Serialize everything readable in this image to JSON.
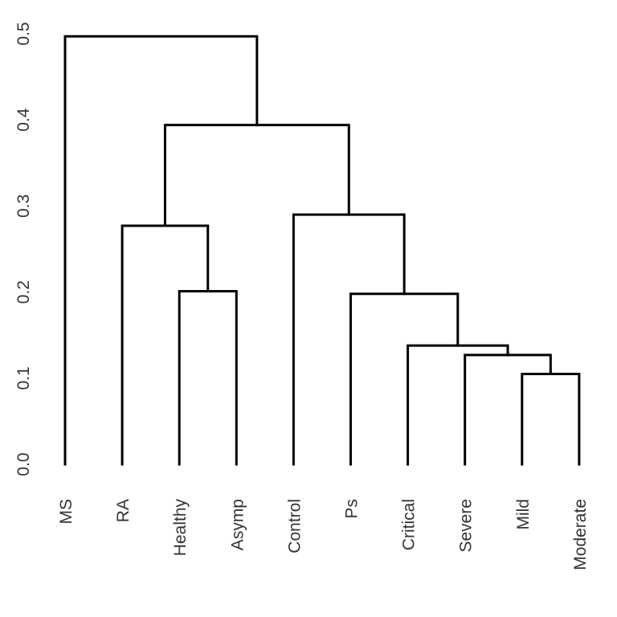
{
  "chart_data": {
    "type": "dendrogram",
    "title": "",
    "xlabel": "",
    "ylabel": "",
    "ylim": [
      0,
      0.5
    ],
    "y_ticks": [
      "0.0",
      "0.1",
      "0.2",
      "0.3",
      "0.4",
      "0.5"
    ],
    "leaves": [
      "MS",
      "RA",
      "Healthy",
      "Asymp",
      "Control",
      "Ps",
      "Critical",
      "Severe",
      "Mild",
      "Moderate"
    ],
    "merges": [
      {
        "id": "n1",
        "left": "Mild",
        "right": "Moderate",
        "height": 0.105
      },
      {
        "id": "n2",
        "left": "Severe",
        "right": "n1",
        "height": 0.127
      },
      {
        "id": "n3",
        "left": "Critical",
        "right": "n2",
        "height": 0.138
      },
      {
        "id": "n4",
        "left": "Ps",
        "right": "n3",
        "height": 0.198
      },
      {
        "id": "n5",
        "left": "Healthy",
        "right": "Asymp",
        "height": 0.201
      },
      {
        "id": "n6",
        "left": "RA",
        "right": "n5",
        "height": 0.277
      },
      {
        "id": "n7",
        "left": "Control",
        "right": "n4",
        "height": 0.29
      },
      {
        "id": "n8",
        "left": "n6",
        "right": "n7",
        "height": 0.394
      },
      {
        "id": "n9",
        "left": "MS",
        "right": "n8",
        "height": 0.497
      }
    ],
    "grid": false,
    "legend": "none"
  }
}
